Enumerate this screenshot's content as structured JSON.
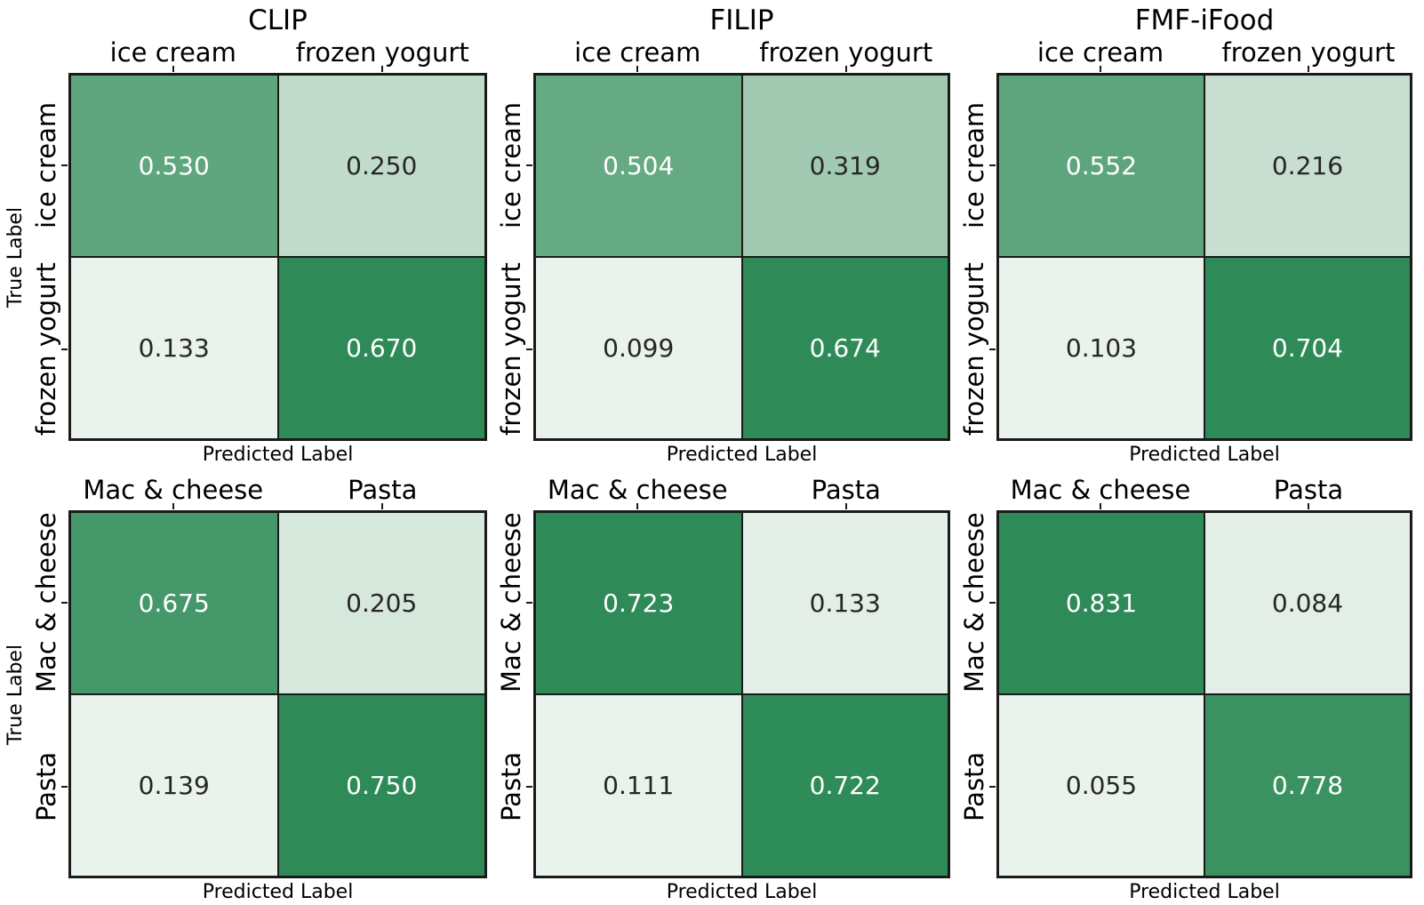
{
  "figure": {
    "xlabel": "Predicted Label",
    "ylabel": "True Label",
    "colormap": {
      "type": "sequential light-to-seagreen, per-panel min-max normalized",
      "low_hex": "#eaf2ec",
      "high_hex": "#2e8b57"
    }
  },
  "chart_data": [
    {
      "type": "heatmap",
      "title": "CLIP",
      "xlabel": "Predicted Label",
      "ylabel": "True Label",
      "x_categories": [
        "ice cream",
        "frozen yogurt"
      ],
      "y_categories": [
        "ice cream",
        "frozen yogurt"
      ],
      "values": [
        [
          0.53,
          0.25
        ],
        [
          0.133,
          0.67
        ]
      ],
      "cell_labels": [
        [
          "0.530",
          "0.250"
        ],
        [
          "0.133",
          "0.670"
        ]
      ],
      "cell_colors": [
        [
          "#5fa67e",
          "#c1dbcb"
        ],
        [
          "#eaf2ec",
          "#2e8b57"
        ]
      ],
      "cell_text_colors": [
        [
          "#ffffff",
          "#262626"
        ],
        [
          "#262626",
          "#ffffff"
        ]
      ]
    },
    {
      "type": "heatmap",
      "title": "FILIP",
      "xlabel": "Predicted Label",
      "x_categories": [
        "ice cream",
        "frozen yogurt"
      ],
      "y_categories": [
        "ice cream",
        "frozen yogurt"
      ],
      "values": [
        [
          0.504,
          0.319
        ],
        [
          0.099,
          0.674
        ]
      ],
      "cell_labels": [
        [
          "0.504",
          "0.319"
        ],
        [
          "0.099",
          "0.674"
        ]
      ],
      "cell_colors": [
        [
          "#66aa83",
          "#a2cab3"
        ],
        [
          "#eaf2ec",
          "#2e8b57"
        ]
      ],
      "cell_text_colors": [
        [
          "#ffffff",
          "#262626"
        ],
        [
          "#262626",
          "#ffffff"
        ]
      ]
    },
    {
      "type": "heatmap",
      "title": "FMF-iFood",
      "xlabel": "Predicted Label",
      "x_categories": [
        "ice cream",
        "frozen yogurt"
      ],
      "y_categories": [
        "ice cream",
        "frozen yogurt"
      ],
      "values": [
        [
          0.552,
          0.216
        ],
        [
          0.103,
          0.704
        ]
      ],
      "cell_labels": [
        [
          "0.552",
          "0.216"
        ],
        [
          "0.103",
          "0.704"
        ]
      ],
      "cell_colors": [
        [
          "#5ea57d",
          "#c7ded0"
        ],
        [
          "#eaf2ec",
          "#2e8b57"
        ]
      ],
      "cell_text_colors": [
        [
          "#ffffff",
          "#262626"
        ],
        [
          "#262626",
          "#ffffff"
        ]
      ]
    },
    {
      "type": "heatmap",
      "xlabel": "Predicted Label",
      "ylabel": "True Label",
      "x_categories": [
        "Mac & cheese",
        "Pasta"
      ],
      "y_categories": [
        "Mac & cheese",
        "Pasta"
      ],
      "values": [
        [
          0.675,
          0.205
        ],
        [
          0.139,
          0.75
        ]
      ],
      "cell_labels": [
        [
          "0.675",
          "0.205"
        ],
        [
          "0.139",
          "0.750"
        ]
      ],
      "cell_colors": [
        [
          "#459869",
          "#d6e7dc"
        ],
        [
          "#eaf2ec",
          "#2e8b57"
        ]
      ],
      "cell_text_colors": [
        [
          "#ffffff",
          "#262626"
        ],
        [
          "#262626",
          "#ffffff"
        ]
      ]
    },
    {
      "type": "heatmap",
      "xlabel": "Predicted Label",
      "x_categories": [
        "Mac & cheese",
        "Pasta"
      ],
      "y_categories": [
        "Mac & cheese",
        "Pasta"
      ],
      "values": [
        [
          0.723,
          0.133
        ],
        [
          0.111,
          0.722
        ]
      ],
      "cell_labels": [
        [
          "0.723",
          "0.133"
        ],
        [
          "0.111",
          "0.722"
        ]
      ],
      "cell_colors": [
        [
          "#2e8b57",
          "#e3eee7"
        ],
        [
          "#eaf2ec",
          "#2e8c58"
        ]
      ],
      "cell_text_colors": [
        [
          "#ffffff",
          "#262626"
        ],
        [
          "#262626",
          "#ffffff"
        ]
      ]
    },
    {
      "type": "heatmap",
      "xlabel": "Predicted Label",
      "x_categories": [
        "Mac & cheese",
        "Pasta"
      ],
      "y_categories": [
        "Mac & cheese",
        "Pasta"
      ],
      "values": [
        [
          0.831,
          0.084
        ],
        [
          0.055,
          0.778
        ]
      ],
      "cell_labels": [
        [
          "0.831",
          "0.084"
        ],
        [
          "0.055",
          "0.778"
        ]
      ],
      "cell_colors": [
        [
          "#2e8b57",
          "#e3eee6"
        ],
        [
          "#eaf2ec",
          "#3b9261"
        ]
      ],
      "cell_text_colors": [
        [
          "#ffffff",
          "#262626"
        ],
        [
          "#262626",
          "#ffffff"
        ]
      ]
    }
  ]
}
